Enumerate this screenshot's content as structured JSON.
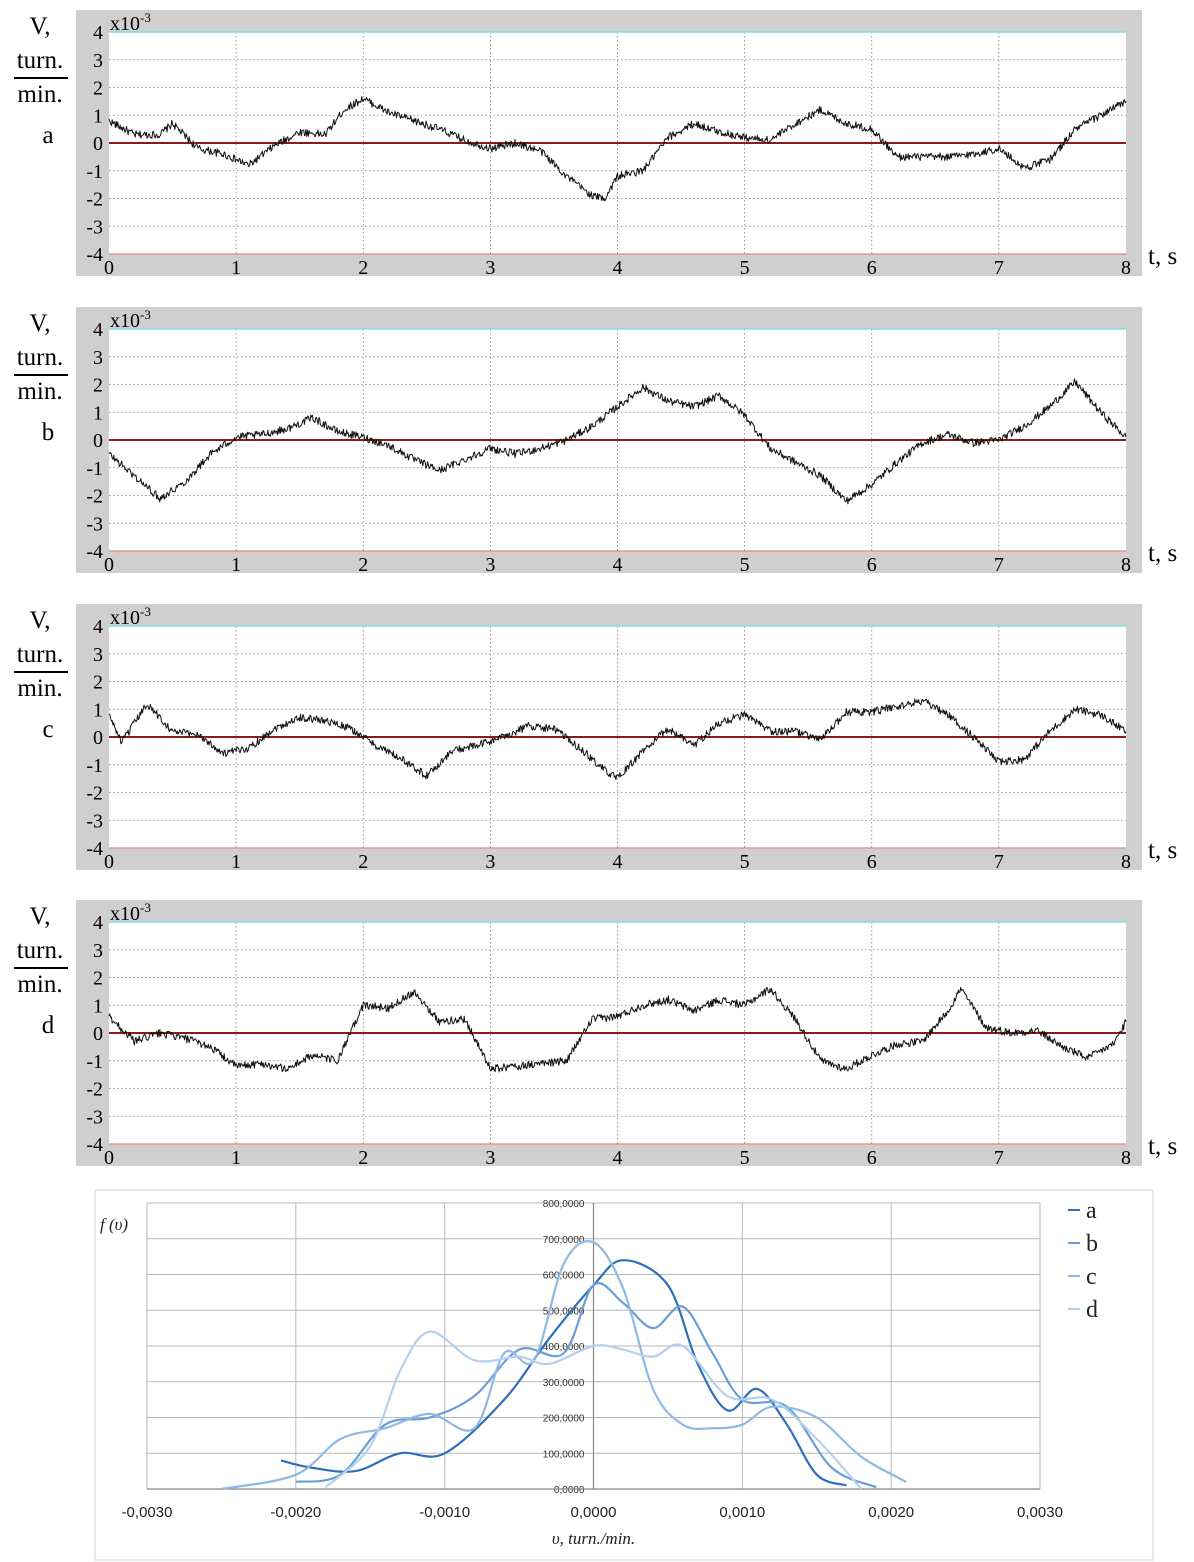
{
  "time_panels": {
    "y_label": {
      "line1": "V,",
      "numerator": "turn.",
      "denominator": "min."
    },
    "exponent_label": "x10",
    "exponent_power": "-3",
    "x_unit_label": "t, s",
    "y_ticks": [
      "4",
      "3",
      "2",
      "1",
      "0",
      "-1",
      "-2",
      "-3",
      "-4"
    ],
    "x_ticks": [
      "0",
      "1",
      "2",
      "3",
      "4",
      "5",
      "6",
      "7",
      "8"
    ]
  },
  "density": {
    "y_axis_label": "f (υ)",
    "x_axis_label": "υ, turn./min.",
    "x_ticks": [
      "-0,0030",
      "-0,0020",
      "-0,0010",
      "0,0000",
      "0,0010",
      "0,0020",
      "0,0030"
    ],
    "y_ticks": [
      "0,0000",
      "100,0000",
      "200,0000",
      "300,0000",
      "400,0000",
      "500,0000",
      "600,0000",
      "700,0000",
      "800,0000"
    ],
    "legend": [
      "a",
      "b",
      "c",
      "d"
    ]
  },
  "chart_data": [
    {
      "type": "line",
      "label": "a",
      "xlabel": "t, s",
      "ylabel": "V, turn./min.",
      "xlim": [
        0,
        8
      ],
      "ylim": [
        -4,
        4
      ],
      "y_scale_factor": "x10-3",
      "grid": true,
      "series": [
        {
          "x": [
            0,
            0.2,
            0.4,
            0.5,
            0.7,
            0.9,
            1.1,
            1.3,
            1.5,
            1.7,
            1.85,
            2.0,
            2.2,
            2.4,
            2.6,
            2.8,
            3.0,
            3.2,
            3.4,
            3.6,
            3.8,
            3.9,
            4.0,
            4.2,
            4.4,
            4.6,
            4.8,
            5.0,
            5.2,
            5.4,
            5.6,
            5.8,
            6.0,
            6.2,
            6.4,
            6.6,
            6.8,
            7.0,
            7.2,
            7.4,
            7.6,
            7.8,
            8.0
          ],
          "y": [
            0.8,
            0.3,
            0.3,
            0.7,
            -0.2,
            -0.4,
            -0.8,
            -0.1,
            0.4,
            0.3,
            1.2,
            1.6,
            1.1,
            0.8,
            0.5,
            0.1,
            -0.2,
            0.0,
            -0.3,
            -1.2,
            -1.9,
            -2.0,
            -1.2,
            -1.0,
            0.2,
            0.7,
            0.4,
            0.2,
            0.1,
            0.7,
            1.2,
            0.7,
            0.5,
            -0.5,
            -0.5,
            -0.5,
            -0.4,
            -0.2,
            -0.9,
            -0.6,
            0.5,
            1.0,
            1.5
          ]
        }
      ]
    },
    {
      "type": "line",
      "label": "b",
      "xlabel": "t, s",
      "ylabel": "V, turn./min.",
      "xlim": [
        0,
        8
      ],
      "ylim": [
        -4,
        4
      ],
      "y_scale_factor": "x10-3",
      "grid": true,
      "series": [
        {
          "x": [
            0,
            0.2,
            0.4,
            0.6,
            0.8,
            1.0,
            1.2,
            1.4,
            1.6,
            1.8,
            2.0,
            2.2,
            2.4,
            2.6,
            2.8,
            3.0,
            3.2,
            3.4,
            3.6,
            3.8,
            4.0,
            4.2,
            4.4,
            4.6,
            4.8,
            5.0,
            5.2,
            5.4,
            5.6,
            5.8,
            6.0,
            6.2,
            6.4,
            6.6,
            6.8,
            7.0,
            7.2,
            7.4,
            7.6,
            7.8,
            8.0
          ],
          "y": [
            -0.5,
            -1.3,
            -2.1,
            -1.5,
            -0.5,
            0.1,
            0.2,
            0.4,
            0.8,
            0.3,
            0.1,
            -0.2,
            -0.7,
            -1.1,
            -0.7,
            -0.3,
            -0.5,
            -0.3,
            0.0,
            0.5,
            1.2,
            1.9,
            1.4,
            1.2,
            1.6,
            0.9,
            -0.3,
            -0.8,
            -1.3,
            -2.2,
            -1.6,
            -0.8,
            -0.1,
            0.2,
            -0.1,
            0.0,
            0.5,
            1.2,
            2.1,
            1.0,
            0.1
          ]
        }
      ]
    },
    {
      "type": "line",
      "label": "c",
      "xlabel": "t, s",
      "ylabel": "V, turn./min.",
      "xlim": [
        0,
        8
      ],
      "ylim": [
        -4,
        4
      ],
      "y_scale_factor": "x10-3",
      "grid": true,
      "series": [
        {
          "x": [
            0,
            0.1,
            0.3,
            0.5,
            0.7,
            0.9,
            1.1,
            1.3,
            1.5,
            1.7,
            1.9,
            2.1,
            2.3,
            2.5,
            2.7,
            2.9,
            3.1,
            3.3,
            3.5,
            3.7,
            3.9,
            4.0,
            4.2,
            4.4,
            4.6,
            4.8,
            5.0,
            5.2,
            5.4,
            5.6,
            5.8,
            6.0,
            6.2,
            6.4,
            6.6,
            6.8,
            7.0,
            7.2,
            7.4,
            7.6,
            7.8,
            8.0
          ],
          "y": [
            0.8,
            -0.2,
            1.2,
            0.2,
            0.1,
            -0.6,
            -0.4,
            0.3,
            0.7,
            0.6,
            0.3,
            -0.3,
            -0.8,
            -1.4,
            -0.5,
            -0.3,
            0.0,
            0.4,
            0.3,
            -0.4,
            -1.2,
            -1.5,
            -0.5,
            0.3,
            -0.3,
            0.5,
            0.8,
            0.2,
            0.2,
            -0.1,
            0.9,
            0.9,
            1.1,
            1.3,
            0.8,
            0.0,
            -0.9,
            -0.8,
            0.2,
            1.0,
            0.8,
            0.2
          ]
        }
      ]
    },
    {
      "type": "line",
      "label": "d",
      "xlabel": "t, s",
      "ylabel": "V, turn./min.",
      "xlim": [
        0,
        8
      ],
      "ylim": [
        -4,
        4
      ],
      "y_scale_factor": "x10-3",
      "grid": true,
      "series": [
        {
          "x": [
            0,
            0.2,
            0.4,
            0.6,
            0.8,
            1.0,
            1.2,
            1.4,
            1.6,
            1.8,
            2.0,
            2.2,
            2.4,
            2.6,
            2.8,
            3.0,
            3.2,
            3.4,
            3.6,
            3.8,
            4.0,
            4.2,
            4.4,
            4.6,
            4.8,
            5.0,
            5.2,
            5.4,
            5.6,
            5.8,
            6.0,
            6.2,
            6.4,
            6.6,
            6.7,
            6.9,
            7.1,
            7.3,
            7.5,
            7.7,
            7.9,
            8.0
          ],
          "y": [
            0.6,
            -0.3,
            0.0,
            -0.2,
            -0.5,
            -1.2,
            -1.1,
            -1.3,
            -0.8,
            -1.0,
            1.0,
            0.9,
            1.5,
            0.4,
            0.5,
            -1.3,
            -1.2,
            -1.1,
            -1.0,
            0.5,
            0.6,
            1.0,
            1.2,
            0.8,
            1.2,
            1.0,
            1.6,
            0.5,
            -1.0,
            -1.3,
            -0.8,
            -0.4,
            -0.3,
            0.8,
            1.6,
            0.2,
            0.0,
            0.1,
            -0.5,
            -0.9,
            -0.4,
            0.4
          ]
        }
      ]
    },
    {
      "type": "line",
      "title": "",
      "xlabel": "υ, turn./min.",
      "ylabel": "f (υ)",
      "xlim": [
        -0.003,
        0.003
      ],
      "ylim": [
        0,
        800
      ],
      "grid": true,
      "legend_position": "right",
      "series": [
        {
          "name": "a",
          "color": "#2f6fb8",
          "x": [
            -0.0021,
            -0.0019,
            -0.0016,
            -0.0013,
            -0.001,
            -0.0006,
            -0.0003,
            0.0,
            0.0002,
            0.0005,
            0.0007,
            0.0009,
            0.0011,
            0.0013,
            0.0015,
            0.0017
          ],
          "y": [
            80,
            60,
            50,
            100,
            100,
            250,
            420,
            570,
            640,
            570,
            350,
            220,
            280,
            180,
            40,
            10
          ]
        },
        {
          "name": "b",
          "color": "#6a9fd6",
          "x": [
            -0.002,
            -0.0017,
            -0.0014,
            -0.0011,
            -0.0008,
            -0.0005,
            -0.0002,
            0.0,
            0.0002,
            0.0004,
            0.0006,
            0.0008,
            0.001,
            0.0013,
            0.0016,
            0.0019
          ],
          "y": [
            20,
            40,
            180,
            200,
            260,
            390,
            380,
            570,
            520,
            450,
            510,
            380,
            250,
            230,
            60,
            5
          ]
        },
        {
          "name": "c",
          "color": "#8fb9e4",
          "x": [
            -0.0025,
            -0.002,
            -0.0017,
            -0.0014,
            -0.0011,
            -0.0008,
            -0.0006,
            -0.0004,
            -0.0002,
            0.0,
            0.0002,
            0.0004,
            0.0006,
            0.0008,
            0.001,
            0.0012,
            0.0015,
            0.0018,
            0.0021
          ],
          "y": [
            0,
            40,
            140,
            170,
            210,
            170,
            380,
            360,
            630,
            690,
            560,
            280,
            180,
            170,
            180,
            230,
            200,
            90,
            20
          ]
        },
        {
          "name": "d",
          "color": "#b3d1ef",
          "x": [
            -0.0018,
            -0.0015,
            -0.0013,
            -0.0011,
            -0.0008,
            -0.0005,
            -0.0003,
            0.0,
            0.0002,
            0.0004,
            0.0006,
            0.0009,
            0.0012,
            0.0015,
            0.0018
          ],
          "y": [
            5,
            120,
            330,
            440,
            360,
            370,
            350,
            400,
            390,
            370,
            400,
            260,
            250,
            140,
            0
          ]
        }
      ]
    }
  ]
}
